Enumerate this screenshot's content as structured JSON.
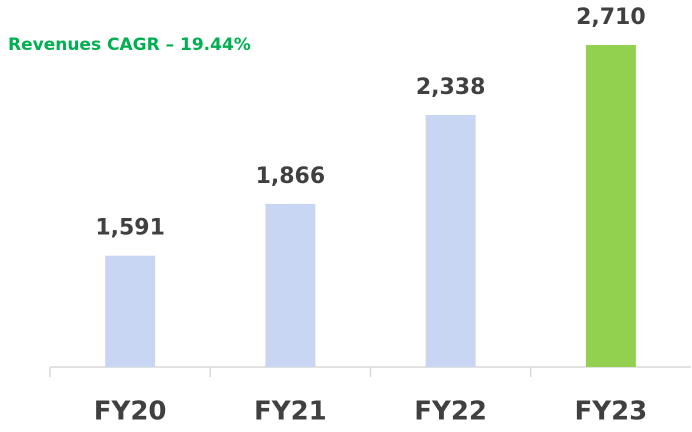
{
  "chart_data": {
    "type": "bar",
    "annotation": "Revenues CAGR – 19.44%",
    "categories": [
      "FY20",
      "FY21",
      "FY22",
      "FY23"
    ],
    "values": [
      1591,
      1866,
      2338,
      2710
    ],
    "value_labels": [
      "1,591",
      "1,866",
      "2,338",
      "2,710"
    ],
    "colors": [
      "#c9d6f3",
      "#c9d6f3",
      "#c9d6f3",
      "#92d050"
    ],
    "ylim": [
      1000,
      2800
    ]
  }
}
